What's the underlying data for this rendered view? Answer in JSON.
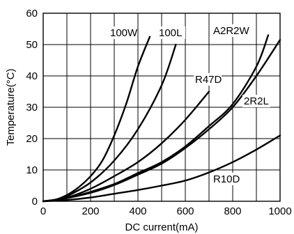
{
  "chart_data": {
    "type": "line",
    "xlabel": "DC current(mA)",
    "ylabel": "Temperature(°C)",
    "xlim": [
      0,
      1000
    ],
    "ylim": [
      0,
      60
    ],
    "xticks": [
      "0",
      "200",
      "400",
      "600",
      "800",
      "1000"
    ],
    "yticks": [
      "0",
      "10",
      "20",
      "30",
      "40",
      "50",
      "60"
    ],
    "grid": true,
    "series": [
      {
        "name": "100W",
        "x": [
          0,
          50,
          100,
          150,
          200,
          250,
          300,
          350,
          400,
          450
        ],
        "y": [
          0,
          0.5,
          2,
          4.5,
          8,
          13,
          21,
          31,
          43,
          52.5
        ]
      },
      {
        "name": "100L",
        "x": [
          0,
          50,
          100,
          200,
          300,
          400,
          500,
          560
        ],
        "y": [
          0,
          0.4,
          1.6,
          6,
          13,
          23,
          37,
          50
        ]
      },
      {
        "name": "R47D",
        "x": [
          0,
          100,
          200,
          300,
          400,
          500,
          600,
          700
        ],
        "y": [
          0,
          1.2,
          4,
          8,
          12.5,
          18.5,
          26,
          35
        ]
      },
      {
        "name": "A2R2W",
        "x": [
          0,
          100,
          200,
          300,
          400,
          500,
          600,
          700,
          800,
          900,
          950
        ],
        "y": [
          0,
          1,
          3,
          5.5,
          9,
          12.5,
          17.5,
          24,
          31,
          43,
          53
        ]
      },
      {
        "name": "2R2L",
        "x": [
          0,
          100,
          200,
          300,
          400,
          500,
          600,
          700,
          800,
          900,
          1000
        ],
        "y": [
          0,
          1,
          2.7,
          5.2,
          8.5,
          12,
          17,
          23,
          30,
          40,
          51.5
        ]
      },
      {
        "name": "R10D",
        "x": [
          0,
          100,
          200,
          300,
          400,
          500,
          600,
          700,
          800,
          900,
          1000
        ],
        "y": [
          0,
          0.4,
          1.2,
          2.4,
          3.6,
          5,
          6.6,
          9.2,
          12.5,
          16.5,
          21
        ]
      }
    ]
  }
}
